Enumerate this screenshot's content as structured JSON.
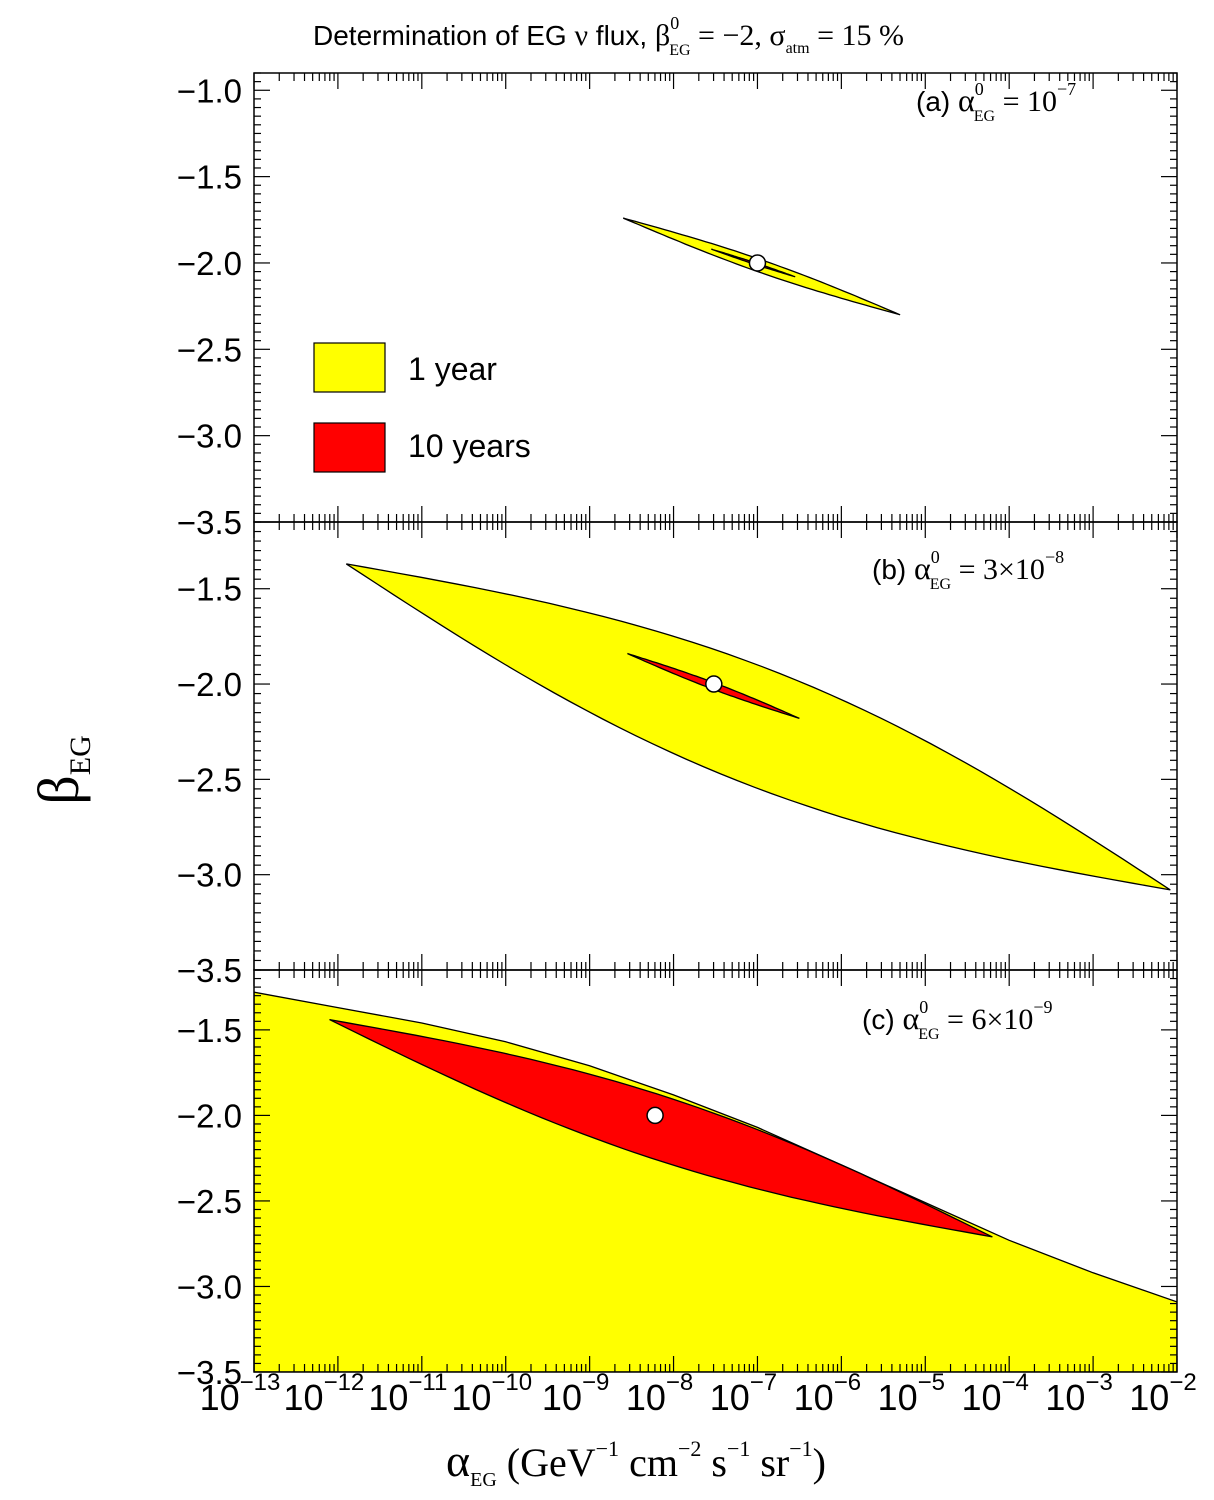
{
  "figure": {
    "title": {
      "prefix": "Determination of  EG ",
      "nu": "ν",
      "flux": " flux,  ",
      "beta": "β",
      "beta_sup": "0",
      "beta_sub": "EG",
      "beta_val": " = −2, ",
      "sigma": "σ",
      "sigma_sub": "atm",
      "sigma_val": " = 15 %"
    },
    "ylabel": {
      "sym": "β",
      "sub": "EG"
    },
    "xlabel": {
      "sym": "α",
      "sub": "EG",
      "open": " (GeV",
      "e1": "−1",
      "cm": " cm",
      "e2": "−2",
      "s": " s",
      "e3": "−1",
      "sr": " sr",
      "e4": "−1",
      "close": ")"
    },
    "legend": {
      "items": [
        {
          "label": "1 year",
          "color": "#ffff00"
        },
        {
          "label": "10 years",
          "color": "#ff0000"
        }
      ]
    }
  },
  "chart_data": [
    {
      "type": "area",
      "panel": "a",
      "label": {
        "prefix": "(a) ",
        "alpha": "α",
        "sup": "0",
        "sub": "EG",
        "value": " = 10",
        "exp": "−7"
      },
      "x_scale": "log",
      "xlim": [
        -13,
        -2
      ],
      "ylim": [
        -3.5,
        -0.9
      ],
      "yticks": [
        "−1.0",
        "−1.5",
        "−2.0",
        "−2.5",
        "−3.0",
        "−3.5"
      ],
      "true_point": {
        "x": -7.0,
        "y": -2.0
      },
      "series": [
        {
          "name": "1 year",
          "color": "#ffff00",
          "end1": {
            "x": -8.6,
            "y": -1.74
          },
          "end2": {
            "x": -5.3,
            "y": -2.3
          },
          "width": 0.042
        },
        {
          "name": "10 years",
          "color": "#ff0000",
          "end1": {
            "x": -7.55,
            "y": -1.92
          },
          "end2": {
            "x": -6.55,
            "y": -2.08
          },
          "width": 0.018
        }
      ]
    },
    {
      "type": "area",
      "panel": "b",
      "label": {
        "prefix": "(b) ",
        "alpha": "α",
        "sup": "0",
        "sub": "EG",
        "value": " = 3×10",
        "exp": "−8"
      },
      "x_scale": "log",
      "xlim": [
        -13,
        -2
      ],
      "ylim": [
        -3.5,
        -1.15
      ],
      "yticks": [
        "−1.5",
        "−2.0",
        "−2.5",
        "−3.0",
        "−3.5"
      ],
      "true_point": {
        "x": -7.52,
        "y": -2.0
      },
      "series": [
        {
          "name": "1 year",
          "color": "#ffff00",
          "end1": {
            "x": -11.9,
            "y": -1.37
          },
          "end2": {
            "x": -2.08,
            "y": -3.08
          },
          "width": 0.13
        },
        {
          "name": "10 years",
          "color": "#ff0000",
          "end1": {
            "x": -8.55,
            "y": -1.84
          },
          "end2": {
            "x": -6.5,
            "y": -2.18
          },
          "width": 0.035
        }
      ]
    },
    {
      "type": "area",
      "panel": "c",
      "label": {
        "prefix": "(c) ",
        "alpha": "α",
        "sup": "0",
        "sub": "EG",
        "value": " = 6×10",
        "exp": "−9"
      },
      "x_scale": "log",
      "xlim": [
        -13,
        -2
      ],
      "ylim": [
        -3.5,
        -1.15
      ],
      "yticks": [
        "−1.5",
        "−2.0",
        "−2.5",
        "−3.0",
        "−3.5"
      ],
      "xticks": [
        {
          "base": "10",
          "exp": "−13"
        },
        {
          "base": "10",
          "exp": "−12"
        },
        {
          "base": "10",
          "exp": "−11"
        },
        {
          "base": "10",
          "exp": "−10"
        },
        {
          "base": "10",
          "exp": "−9"
        },
        {
          "base": "10",
          "exp": "−8"
        },
        {
          "base": "10",
          "exp": "−7"
        },
        {
          "base": "10",
          "exp": "−6"
        },
        {
          "base": "10",
          "exp": "−5"
        },
        {
          "base": "10",
          "exp": "−4"
        },
        {
          "base": "10",
          "exp": "−3"
        },
        {
          "base": "10",
          "exp": "−2"
        }
      ],
      "true_point": {
        "x": -8.22,
        "y": -2.0
      },
      "series": [
        {
          "name": "1 year",
          "color": "#ffff00",
          "upper_boundary": [
            {
              "x": -13.0,
              "y": -1.28
            },
            {
              "x": -12.0,
              "y": -1.37
            },
            {
              "x": -11.0,
              "y": -1.46
            },
            {
              "x": -10.0,
              "y": -1.57
            },
            {
              "x": -9.0,
              "y": -1.71
            },
            {
              "x": -8.0,
              "y": -1.88
            },
            {
              "x": -7.0,
              "y": -2.07
            },
            {
              "x": -6.0,
              "y": -2.29
            },
            {
              "x": -5.0,
              "y": -2.51
            },
            {
              "x": -4.0,
              "y": -2.73
            },
            {
              "x": -3.0,
              "y": -2.92
            },
            {
              "x": -2.0,
              "y": -3.09
            }
          ]
        },
        {
          "name": "10 years",
          "color": "#ff0000",
          "end1": {
            "x": -12.1,
            "y": -1.44
          },
          "end2": {
            "x": -4.2,
            "y": -2.71
          },
          "width": 0.09
        }
      ]
    }
  ]
}
